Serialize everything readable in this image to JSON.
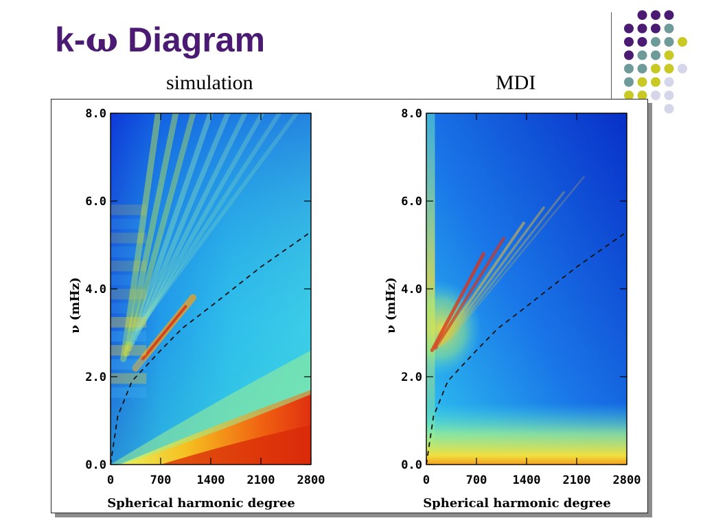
{
  "slide": {
    "title_prefix": "k-",
    "title_greek": "ω",
    "title_suffix": " Diagram",
    "left_label": "simulation",
    "right_label": "MDI"
  },
  "colors": {
    "title": "#4b1a72",
    "dot_purple": "#4b1a72",
    "dot_teal": "#6f9a9a",
    "dot_olive": "#c9c925",
    "dot_lavender": "#d6d6ea"
  },
  "chart_data": [
    {
      "type": "heatmap",
      "title": "simulation",
      "xlabel": "Spherical harmonic degree",
      "ylabel": "ν (mHz)",
      "xlim": [
        0,
        2800
      ],
      "ylim": [
        0,
        8.0
      ],
      "xticks": [
        0,
        700,
        1400,
        2100,
        2800
      ],
      "yticks": [
        0.0,
        2.0,
        4.0,
        6.0,
        8.0
      ],
      "xtick_labels": [
        "0",
        "700",
        "1400",
        "2100",
        "2800"
      ],
      "ytick_labels": [
        "0.0",
        "2.0",
        "4.0",
        "6.0",
        "8.0"
      ],
      "dashed_curve": [
        [
          0,
          0
        ],
        [
          100,
          1.1
        ],
        [
          300,
          1.9
        ],
        [
          700,
          2.6
        ],
        [
          1000,
          3.1
        ],
        [
          1400,
          3.6
        ],
        [
          2100,
          4.5
        ],
        [
          2800,
          5.3
        ]
      ],
      "colormap": "jet"
    },
    {
      "type": "heatmap",
      "title": "MDI",
      "xlabel": "Spherical harmonic degree",
      "ylabel": "ν (mHz)",
      "xlim": [
        0,
        2800
      ],
      "ylim": [
        0,
        8.0
      ],
      "xticks": [
        0,
        700,
        1400,
        2100,
        2800
      ],
      "yticks": [
        0.0,
        2.0,
        4.0,
        6.0,
        8.0
      ],
      "xtick_labels": [
        "0",
        "700",
        "1400",
        "2100",
        "2800"
      ],
      "ytick_labels": [
        "0.0",
        "2.0",
        "4.0",
        "6.0",
        "8.0"
      ],
      "dashed_curve": [
        [
          0,
          0
        ],
        [
          100,
          1.1
        ],
        [
          300,
          1.9
        ],
        [
          700,
          2.6
        ],
        [
          1000,
          3.1
        ],
        [
          1400,
          3.6
        ],
        [
          2100,
          4.5
        ],
        [
          2800,
          5.3
        ]
      ],
      "colormap": "jet"
    }
  ]
}
